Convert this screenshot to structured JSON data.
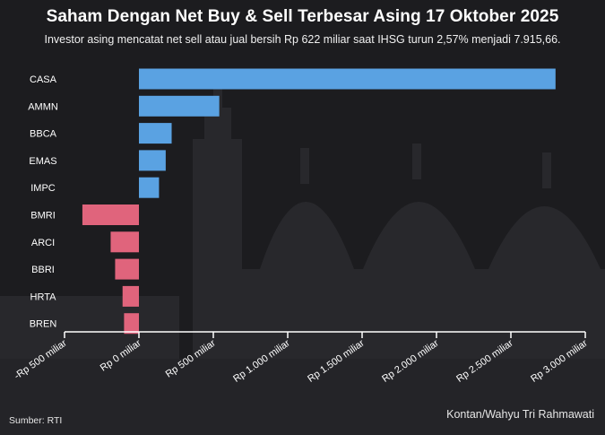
{
  "title": "Saham Dengan Net Buy & Sell Terbesar Asing 17 Oktober 2025",
  "subtitle": "Investor asing mencatat net sell atau jual bersih Rp 622 miliar saat IHSG turun 2,57% menjadi 7.915,66.",
  "source": "Sumber: RTI",
  "credit": "Kontan/Wahyu Tri Rahmawati",
  "colors": {
    "background": "#1c1c1f",
    "net_buy": "#5aa2e2",
    "net_sell": "#e0647c",
    "axis": "#ffffff"
  },
  "chart_data": {
    "type": "bar",
    "orientation": "horizontal",
    "categories": [
      "CASA",
      "AMMN",
      "BBCA",
      "EMAS",
      "IMPC",
      "BMRI",
      "ARCI",
      "BBRI",
      "HRTA",
      "BREN"
    ],
    "values": [
      2800,
      540,
      220,
      180,
      135,
      -380,
      -190,
      -160,
      -110,
      -100
    ],
    "xlim": [
      -500,
      3000
    ],
    "xticks": [
      -500,
      0,
      500,
      1000,
      1500,
      2000,
      2500,
      3000
    ],
    "xtick_labels": [
      "-Rp 500 miliar",
      "Rp 0 miliar",
      "Rp 500 miliar",
      "Rp 1.000 miliar",
      "Rp 1.500 miliar",
      "Rp 2.000 miliar",
      "Rp 2.500 miliar",
      "Rp 3.000 miliar"
    ],
    "xlabel": "",
    "ylabel": "",
    "grid": false,
    "legend": "none"
  }
}
